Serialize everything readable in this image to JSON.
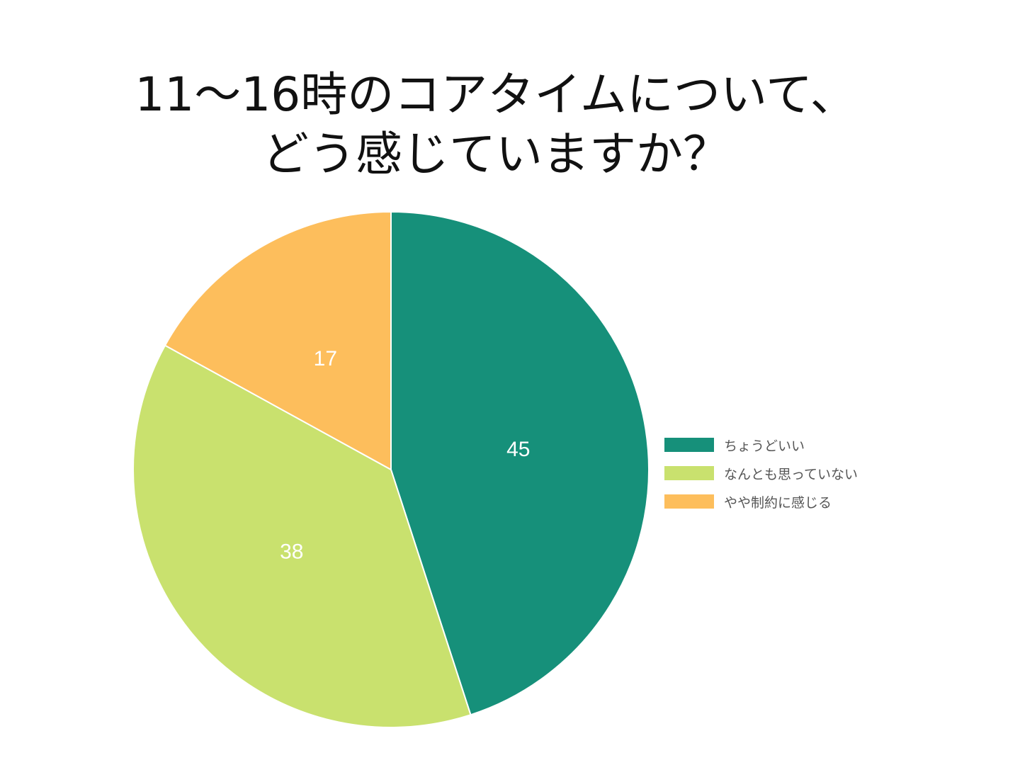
{
  "chart_data": {
    "type": "pie",
    "title_lines": [
      "11〜16時のコアタイムについて、",
      "どう感じていますか？"
    ],
    "categories": [
      "ちょうどいい",
      "なんとも思っていない",
      "やや制約に感じる"
    ],
    "values": [
      45,
      38,
      17
    ],
    "colors": [
      "#16907A",
      "#C9E16E",
      "#FDBE5C"
    ],
    "start_angle": "top",
    "direction": "clockwise",
    "legend_position": "right"
  }
}
